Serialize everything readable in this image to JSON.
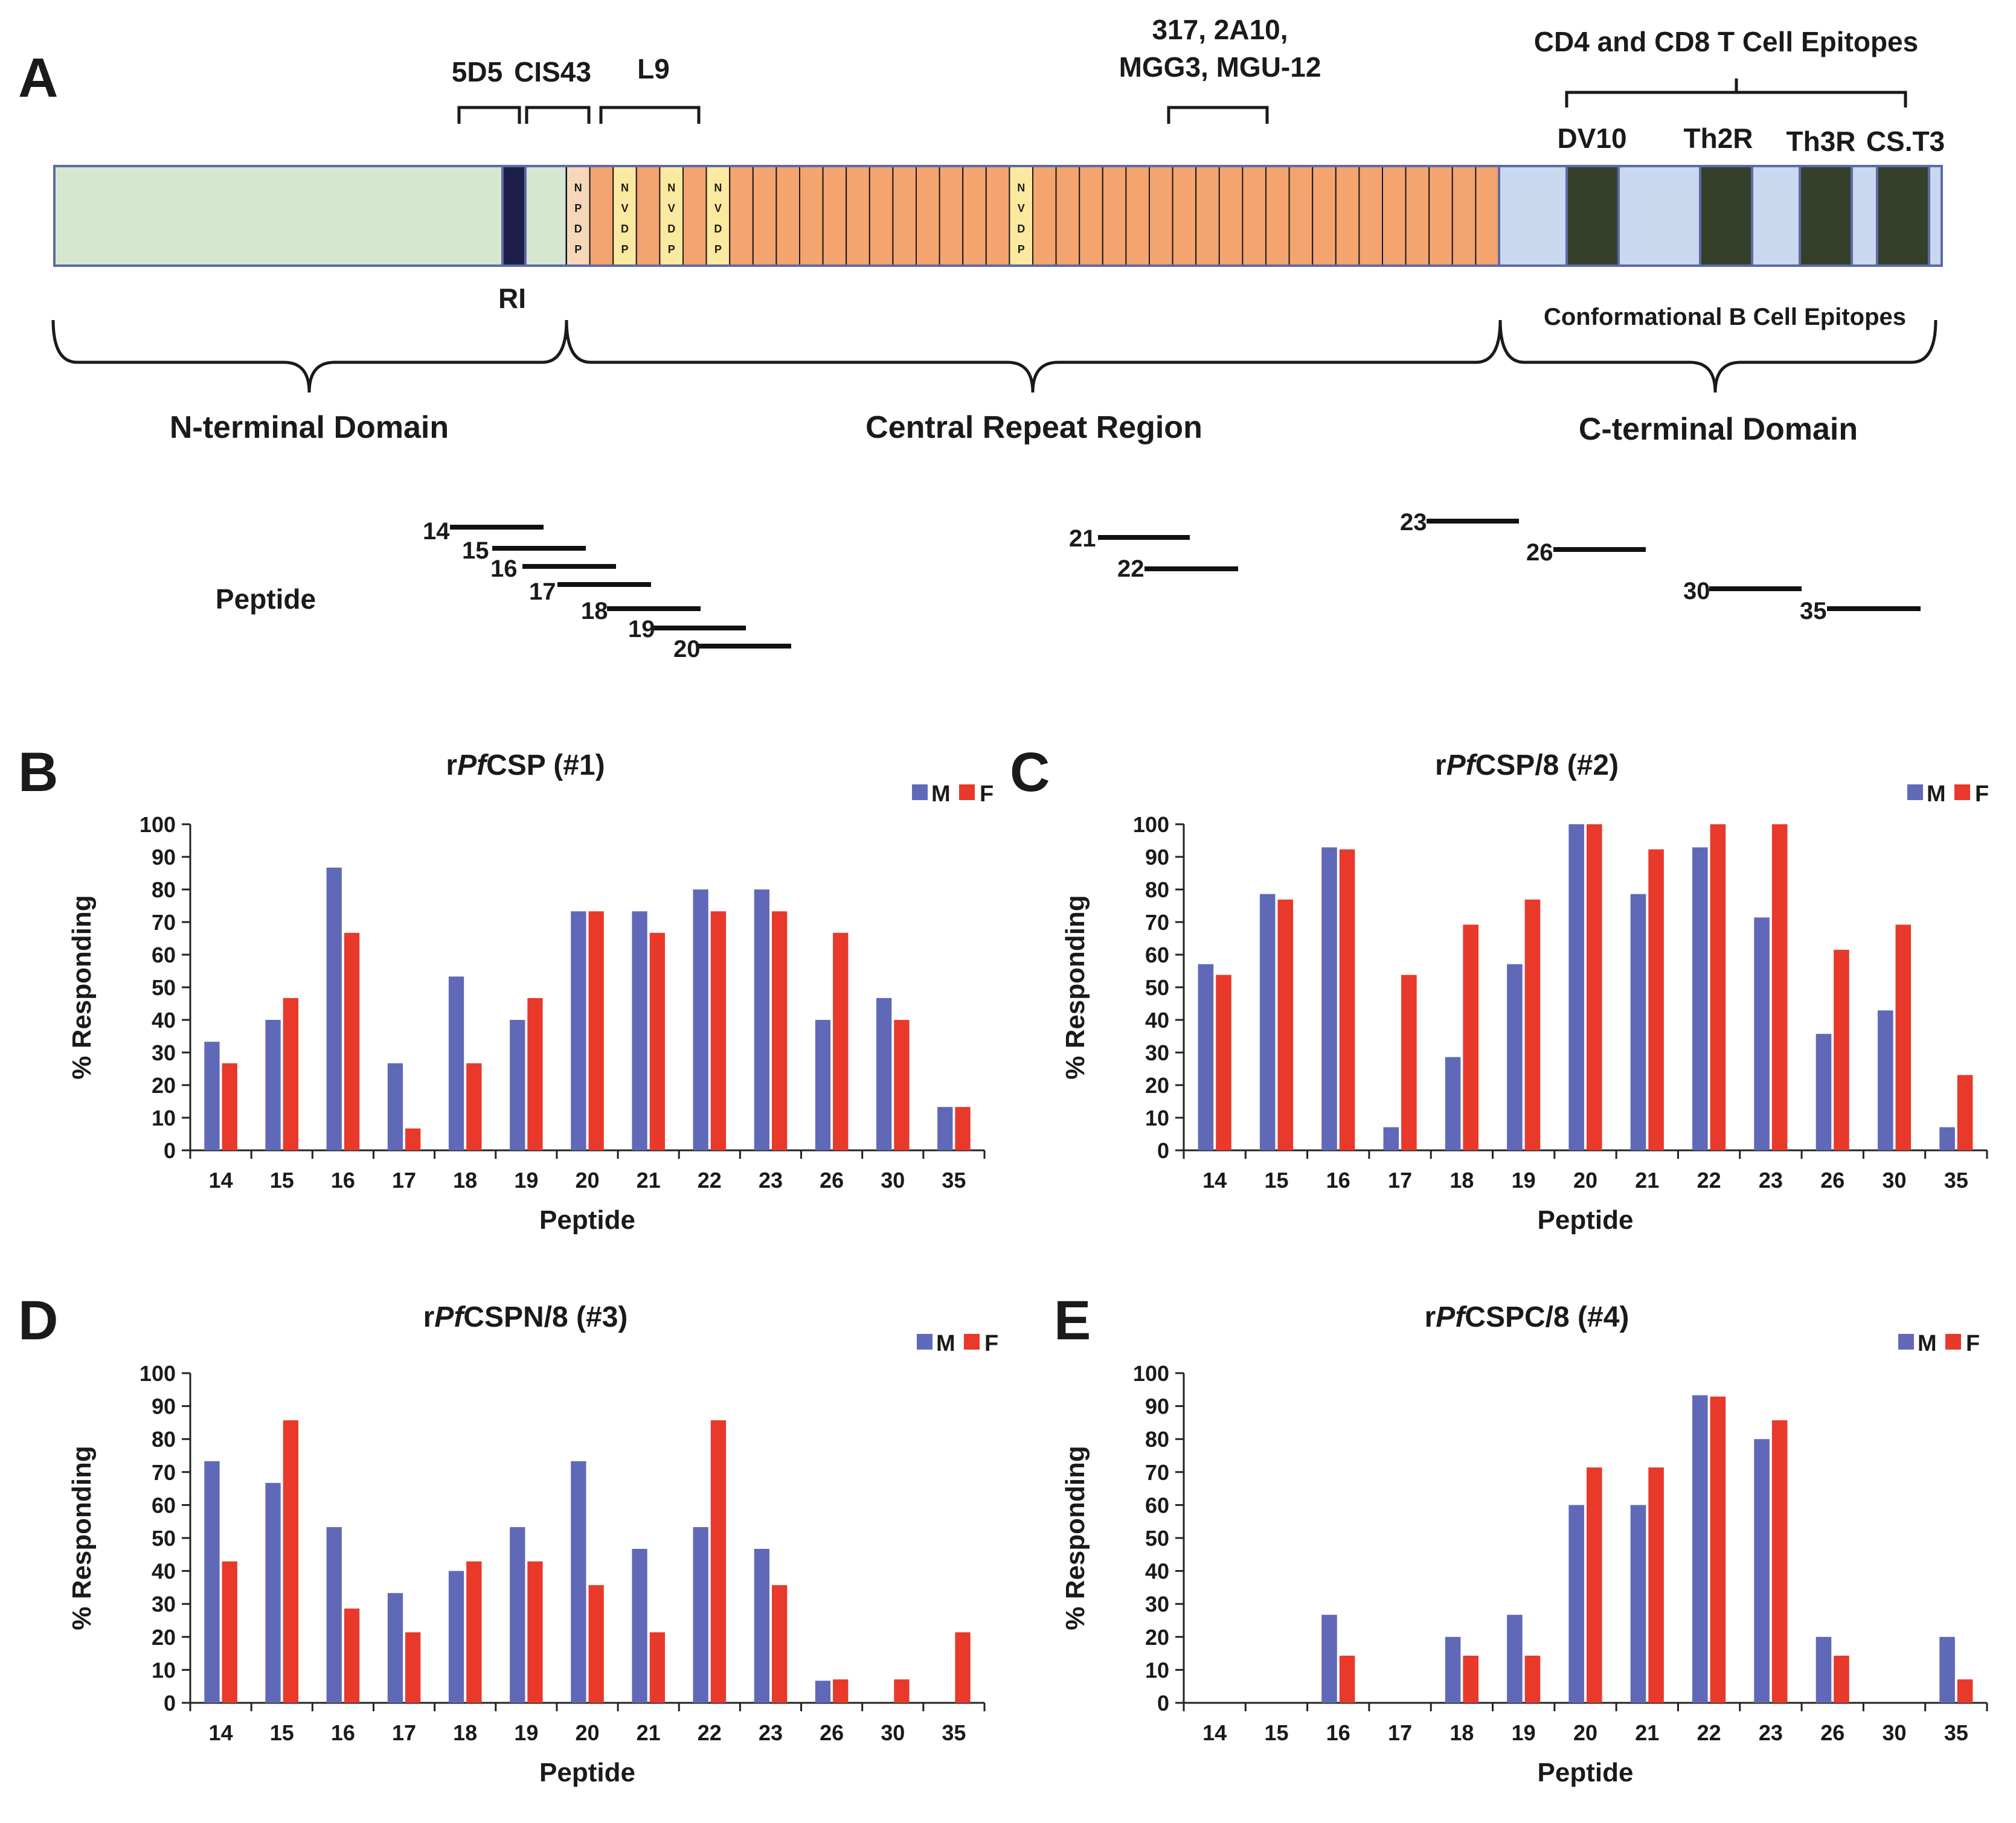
{
  "panel_a": {
    "letter": "A",
    "epitope_labels": {
      "mab_5d5": "5D5",
      "mab_cis43": "CIS43",
      "mab_l9": "L9",
      "mab_317_line1": "317, 2A10,",
      "mab_317_line2": "MGG3, MGU-12",
      "t_cell_header": "CD4 and CD8 T Cell Epitopes",
      "dv10": "DV10",
      "th2r": "Th2R",
      "th3r": "Th3R",
      "cst3": "CS.T3",
      "ri": "RI",
      "conformational": "Conformational B Cell Epitopes"
    },
    "motifs": {
      "npdp": [
        "N",
        "P",
        "D",
        "P"
      ],
      "nvdp": [
        "N",
        "V",
        "D",
        "P"
      ]
    },
    "domains": {
      "n_terminal": "N-terminal Domain",
      "central_repeat": "Central Repeat Region",
      "c_terminal": "C-terminal Domain"
    },
    "peptide_label": "Peptide",
    "peptides": [
      "14",
      "15",
      "16",
      "17",
      "18",
      "19",
      "20",
      "21",
      "22",
      "23",
      "26",
      "30",
      "35"
    ],
    "colors": {
      "n_terminal": "#d5e8cf",
      "c_terminal": "#c9d8ee",
      "repeat": "#f4a46e",
      "nvdp": "#fbe9a0",
      "npdp": "#f7d7b9",
      "ri": "#1d1f4a",
      "t_epitope": "#35402b",
      "outline": "#5d6aa6"
    }
  },
  "legend": {
    "m": "M",
    "f": "F"
  },
  "colors": {
    "m": "#6069b8",
    "f": "#e8392b"
  },
  "chart_data": [
    {
      "type": "bar",
      "panel": "B",
      "title_prefix": "r",
      "title_italic": "Pf",
      "title_suffix": "CSP (#1)",
      "xlabel": "Peptide",
      "ylabel": "% Responding",
      "ylim": [
        0,
        100
      ],
      "yticks": [
        0,
        10,
        20,
        30,
        40,
        50,
        60,
        70,
        80,
        90,
        100
      ],
      "categories": [
        "14",
        "15",
        "16",
        "17",
        "18",
        "19",
        "20",
        "21",
        "22",
        "23",
        "26",
        "30",
        "35"
      ],
      "series": [
        {
          "name": "M",
          "values": [
            33.3,
            40,
            86.7,
            26.7,
            53.3,
            40,
            73.3,
            73.3,
            80,
            80,
            40,
            46.7,
            13.3
          ]
        },
        {
          "name": "F",
          "values": [
            26.7,
            46.7,
            66.7,
            6.7,
            26.7,
            46.7,
            73.3,
            66.7,
            73.3,
            73.3,
            66.7,
            40,
            13.3
          ]
        }
      ]
    },
    {
      "type": "bar",
      "panel": "C",
      "title_prefix": "r",
      "title_italic": "Pf",
      "title_suffix": "CSP/8 (#2)",
      "xlabel": "Peptide",
      "ylabel": "% Responding",
      "ylim": [
        0,
        100
      ],
      "yticks": [
        0,
        10,
        20,
        30,
        40,
        50,
        60,
        70,
        80,
        90,
        100
      ],
      "categories": [
        "14",
        "15",
        "16",
        "17",
        "18",
        "19",
        "20",
        "21",
        "22",
        "23",
        "26",
        "30",
        "35"
      ],
      "series": [
        {
          "name": "M",
          "values": [
            57.1,
            78.6,
            92.9,
            7.1,
            28.6,
            57.1,
            100,
            78.6,
            92.9,
            71.4,
            35.7,
            42.9,
            7.1
          ]
        },
        {
          "name": "F",
          "values": [
            53.8,
            76.9,
            92.3,
            53.8,
            69.2,
            76.9,
            100,
            92.3,
            100,
            100,
            61.5,
            69.2,
            23.1
          ]
        }
      ]
    },
    {
      "type": "bar",
      "panel": "D",
      "title_prefix": "r",
      "title_italic": "Pf",
      "title_suffix": "CSPN/8 (#3)",
      "xlabel": "Peptide",
      "ylabel": "% Responding",
      "ylim": [
        0,
        100
      ],
      "yticks": [
        0,
        10,
        20,
        30,
        40,
        50,
        60,
        70,
        80,
        90,
        100
      ],
      "categories": [
        "14",
        "15",
        "16",
        "17",
        "18",
        "19",
        "20",
        "21",
        "22",
        "23",
        "26",
        "30",
        "35"
      ],
      "series": [
        {
          "name": "M",
          "values": [
            73.3,
            66.7,
            53.3,
            33.3,
            40,
            53.3,
            73.3,
            46.7,
            53.3,
            46.7,
            6.7,
            0,
            0
          ]
        },
        {
          "name": "F",
          "values": [
            42.9,
            85.7,
            28.6,
            21.4,
            42.9,
            42.9,
            35.7,
            21.4,
            85.7,
            35.7,
            7.1,
            7.1,
            21.4
          ]
        }
      ]
    },
    {
      "type": "bar",
      "panel": "E",
      "title_prefix": "r",
      "title_italic": "Pf",
      "title_suffix": "CSPC/8 (#4)",
      "xlabel": "Peptide",
      "ylabel": "% Responding",
      "ylim": [
        0,
        100
      ],
      "yticks": [
        0,
        10,
        20,
        30,
        40,
        50,
        60,
        70,
        80,
        90,
        100
      ],
      "categories": [
        "14",
        "15",
        "16",
        "17",
        "18",
        "19",
        "20",
        "21",
        "22",
        "23",
        "26",
        "30",
        "35"
      ],
      "series": [
        {
          "name": "M",
          "values": [
            0,
            0,
            26.7,
            0,
            20,
            26.7,
            60,
            60,
            93.3,
            80,
            20,
            0,
            20
          ]
        },
        {
          "name": "F",
          "values": [
            0,
            0,
            14.3,
            0,
            14.3,
            14.3,
            71.4,
            71.4,
            92.9,
            85.7,
            14.3,
            0,
            7.1
          ]
        }
      ]
    }
  ]
}
